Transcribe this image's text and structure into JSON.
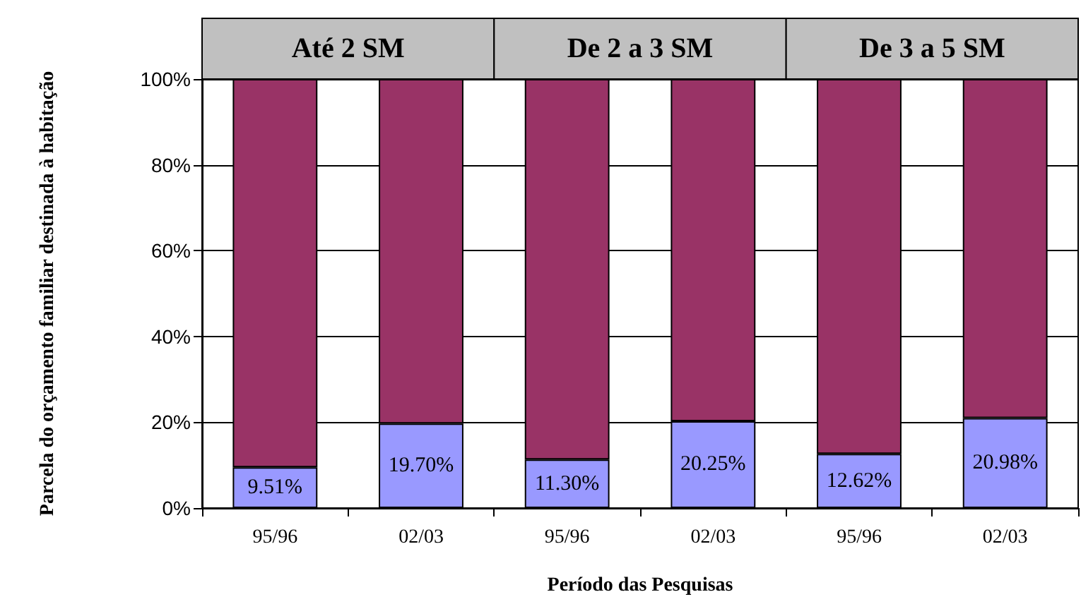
{
  "chart_data": {
    "type": "bar",
    "stacked": true,
    "xlabel": "Período das Pesquisas",
    "ylabel": "Parcela do orçamento familiar destinada à habitação",
    "categories": [
      "95/96",
      "02/03",
      "95/96",
      "02/03",
      "95/96",
      "02/03"
    ],
    "series": [
      {
        "color": "#9999ff",
        "values": [
          9.51,
          19.7,
          11.3,
          20.25,
          12.62,
          20.98
        ],
        "value_labels": [
          "9.51%",
          "19.70%",
          "11.30%",
          "20.25%",
          "12.62%",
          "20.98%"
        ]
      },
      {
        "color": "#993366",
        "values": [
          90.49,
          80.3,
          88.7,
          79.75,
          87.38,
          79.02
        ]
      }
    ],
    "ylim": [
      0,
      100
    ],
    "yticks": [
      {
        "value": 0,
        "label": "0%"
      },
      {
        "value": 20,
        "label": "20%"
      },
      {
        "value": 40,
        "label": "40%"
      },
      {
        "value": 60,
        "label": "60%"
      },
      {
        "value": 80,
        "label": "80%"
      },
      {
        "value": 100,
        "label": "100%"
      }
    ],
    "grid": "y",
    "annotations": [
      "Até 2 SM",
      "De 2 a 3 SM",
      "De 3 a 5 SM"
    ]
  }
}
